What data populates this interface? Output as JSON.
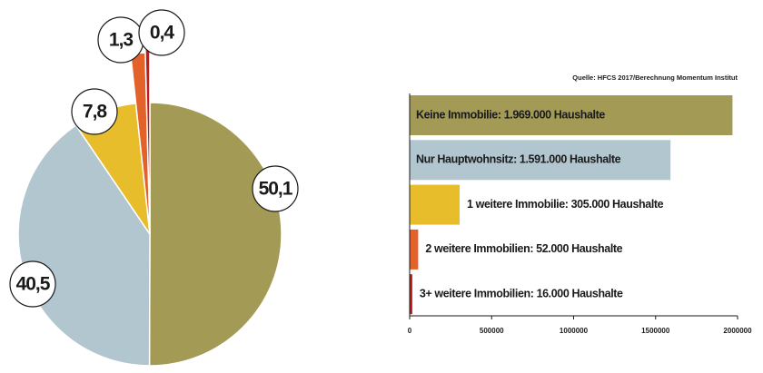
{
  "chart_data": [
    {
      "type": "pie",
      "categories": [
        null,
        null,
        null,
        null,
        null
      ],
      "values": [
        50.1,
        40.5,
        7.8,
        1.3,
        0.4
      ],
      "value_labels": [
        "50,1",
        "40,5",
        "7,8",
        "1,3",
        "0,4"
      ],
      "colors": [
        "#a39a56",
        "#b1c6cf",
        "#e8bd2c",
        "#e2622a",
        "#c0191e"
      ]
    },
    {
      "type": "hbar",
      "source": "Quelle: HFCS 2017/Berechnung Momentum Institut",
      "categories": [
        "Keine Immobilie: 1.969.000 Haushalte",
        "Nur Hauptwohnsitz: 1.591.000 Haushalte",
        "1 weitere Immobilie: 305.000 Haushalte",
        "2 weitere Immobilien: 52.000 Haushalte",
        "3+ weitere Immobilien: 16.000 Haushalte"
      ],
      "values": [
        1969000,
        1591000,
        305000,
        52000,
        16000
      ],
      "colors": [
        "#a39a56",
        "#b1c6cf",
        "#e8bd2c",
        "#e2622a",
        "#c0191e"
      ],
      "xlim": [
        0,
        2000000
      ],
      "xticks": [
        0,
        500000,
        1000000,
        1500000,
        2000000
      ]
    }
  ]
}
